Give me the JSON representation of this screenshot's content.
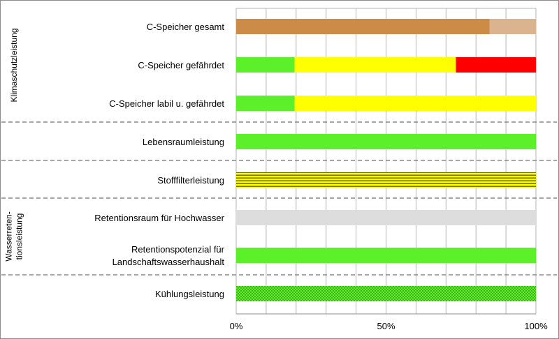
{
  "chart_data": {
    "type": "bar",
    "orientation": "horizontal",
    "stacked": true,
    "xlim": [
      0,
      100
    ],
    "xticks": [
      "0%",
      "50%",
      "100%"
    ],
    "grid": true,
    "groups": [
      {
        "label_lines": [
          "Klimaschutzleistung"
        ],
        "rows": [
          "C-Speicher gesamt",
          "C-Speicher gefährdet",
          "C-Speicher labil u. gefährdet"
        ]
      },
      {
        "label_lines": [],
        "rows": [
          "Lebensraumleistung"
        ]
      },
      {
        "label_lines": [],
        "rows": [
          "Stofffilterleistung"
        ]
      },
      {
        "label_lines": [
          "Wasserreten-",
          "tionsleistung"
        ],
        "rows": [
          "Retentionsraum für Hochwasser",
          "Retentionspotenzial für Landschaftswasserhaushalt"
        ]
      },
      {
        "label_lines": [],
        "rows": [
          "Kühlungsleistung"
        ]
      }
    ],
    "categories": [
      {
        "label": [
          "C-Speicher gesamt"
        ],
        "segments": [
          {
            "value": 84.5,
            "color": "#CD8B48"
          },
          {
            "value": 15.5,
            "color": "#D9B48F"
          }
        ]
      },
      {
        "label": [
          "C-Speicher gefährdet"
        ],
        "segments": [
          {
            "value": 19.5,
            "color": "#5CF02A"
          },
          {
            "value": 53.8,
            "color": "#FFFF00"
          },
          {
            "value": 26.7,
            "color": "#FF0000"
          }
        ]
      },
      {
        "label": [
          "C-Speicher labil u. gefährdet"
        ],
        "segments": [
          {
            "value": 19.5,
            "color": "#5CF02A"
          },
          {
            "value": 80.5,
            "color": "#FFFF00"
          }
        ]
      },
      {
        "label": [
          "Lebensraumleistung"
        ],
        "segments": [
          {
            "value": 100,
            "color": "#5CF02A"
          }
        ]
      },
      {
        "label": [
          "Stofffilterleistung"
        ],
        "segments": [
          {
            "value": 100,
            "color": "#FFFF00",
            "pattern": "horizontal-stripes"
          }
        ]
      },
      {
        "label": [
          "Retentionsraum für Hochwasser"
        ],
        "segments": [
          {
            "value": 100,
            "color": "#DDDDDD"
          }
        ]
      },
      {
        "label": [
          "Retentionspotenzial für",
          "Landschaftswasserhaushalt"
        ],
        "segments": [
          {
            "value": 100,
            "color": "#5CF02A"
          }
        ]
      },
      {
        "label": [
          "Kühlungsleistung"
        ],
        "segments": [
          {
            "value": 100,
            "color": "#5CF02A",
            "pattern": "dots"
          }
        ]
      }
    ]
  }
}
